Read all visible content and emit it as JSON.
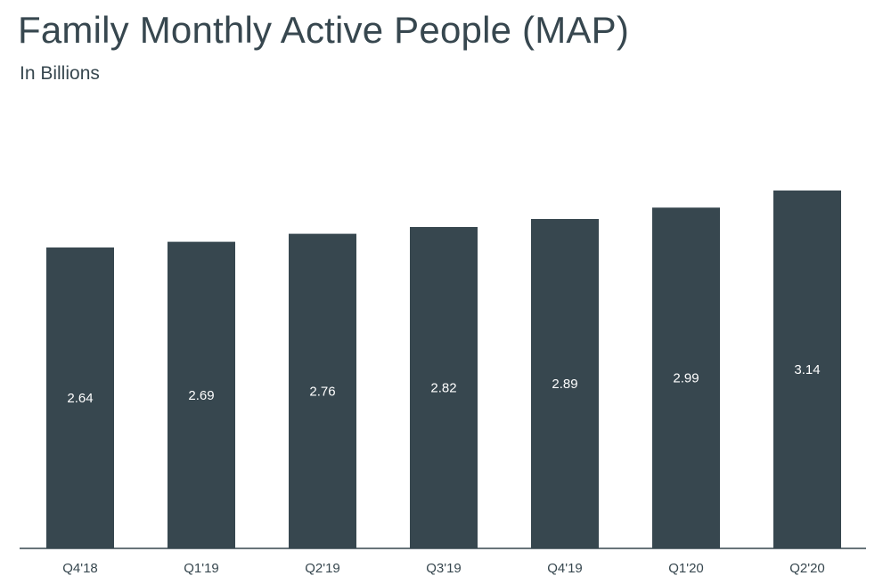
{
  "header": {
    "title": "Family Monthly Active People (MAP)",
    "subtitle": "In Billions"
  },
  "colors": {
    "bar": "#37474f",
    "axis": "#37474f",
    "label": "#ffffff",
    "text": "#37474f"
  },
  "chart_data": {
    "type": "bar",
    "title": "Family Monthly Active People (MAP)",
    "subtitle": "In Billions",
    "categories": [
      "Q4'18",
      "Q1'19",
      "Q2'19",
      "Q3'19",
      "Q4'19",
      "Q1'20",
      "Q2'20"
    ],
    "values": [
      2.64,
      2.69,
      2.76,
      2.82,
      2.89,
      2.99,
      3.14
    ],
    "data_labels": [
      "2.64",
      "2.69",
      "2.76",
      "2.82",
      "2.89",
      "2.99",
      "3.14"
    ],
    "xlabel": "",
    "ylabel": "",
    "ylim": [
      0,
      3.14
    ],
    "grid": false,
    "legend": "none",
    "data_labels_visible": true
  }
}
